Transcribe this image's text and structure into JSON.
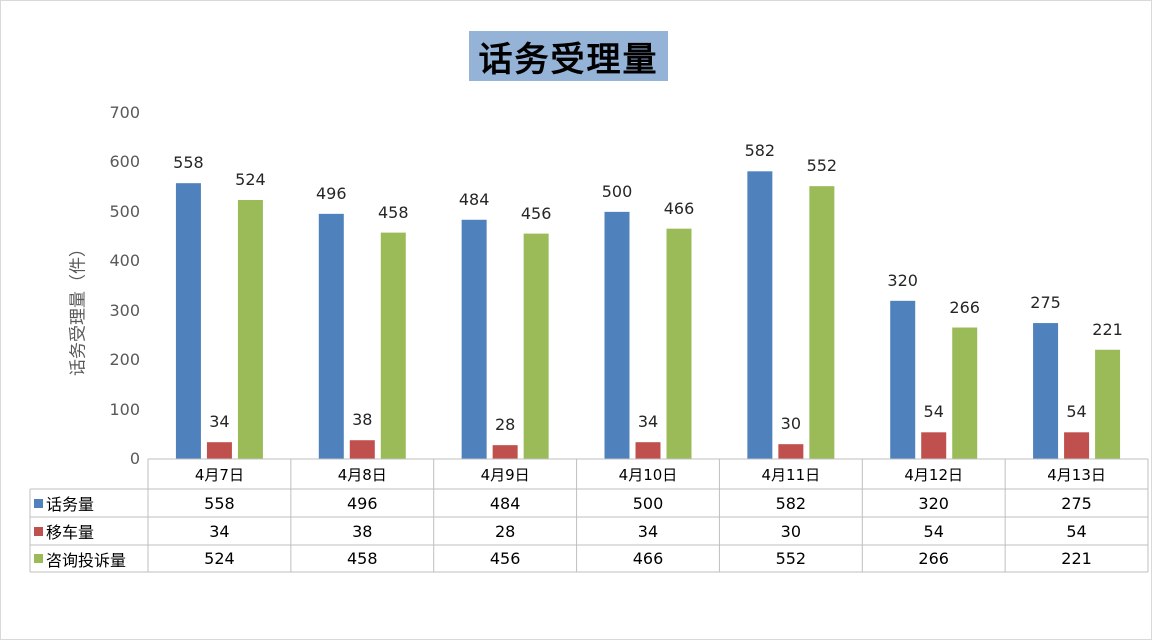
{
  "chart_data": {
    "type": "bar",
    "title": "话务受理量",
    "ylabel": "话务受理量（件）",
    "ylim": [
      0,
      700
    ],
    "yticks": [
      0,
      100,
      200,
      300,
      400,
      500,
      600,
      700
    ],
    "categories": [
      "4月7日",
      "4月8日",
      "4月9日",
      "4月10日",
      "4月11日",
      "4月12日",
      "4月13日"
    ],
    "series": [
      {
        "name": "话务量",
        "color": "#4f81bd",
        "values": [
          558,
          496,
          484,
          500,
          582,
          320,
          275
        ]
      },
      {
        "name": "移车量",
        "color": "#c0504d",
        "values": [
          34,
          38,
          28,
          34,
          30,
          54,
          54
        ]
      },
      {
        "name": "咨询投诉量",
        "color": "#9bbb59",
        "values": [
          524,
          458,
          456,
          466,
          552,
          266,
          221
        ]
      }
    ],
    "grid": false,
    "legend": "data-table"
  }
}
